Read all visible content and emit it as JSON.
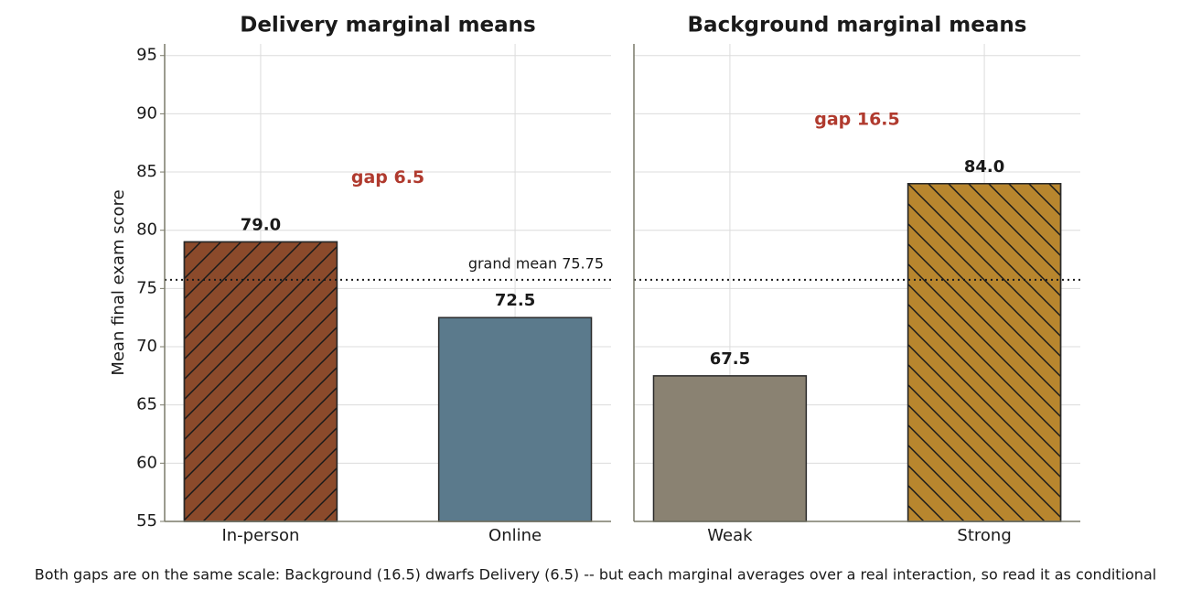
{
  "caption": "Both gaps are on the same scale: Background (16.5) dwarfs Delivery (6.5) -- but each marginal averages over a real interaction, so read it as conditional",
  "chart_data": [
    {
      "type": "bar",
      "title": "Delivery marginal means",
      "ylabel": "Mean final exam score",
      "categories": [
        "In-person",
        "Online"
      ],
      "values": [
        79,
        72.5
      ],
      "value_labels": [
        "79.0",
        "72.5"
      ],
      "colors": [
        "#8b4a2b",
        "#5b7a8c"
      ],
      "hatches": [
        "/",
        "none"
      ],
      "ylim": [
        55,
        96
      ],
      "yticks": [
        55,
        60,
        65,
        70,
        75,
        80,
        85,
        90,
        95
      ],
      "grid": true,
      "reference_line": 75.75,
      "reference_label": "grand mean 75.75",
      "annotation": "gap 6.5"
    },
    {
      "type": "bar",
      "title": "Background marginal means",
      "categories": [
        "Weak",
        "Strong"
      ],
      "values": [
        67.5,
        84
      ],
      "value_labels": [
        "67.5",
        "84.0"
      ],
      "colors": [
        "#8a8272",
        "#b8862e"
      ],
      "hatches": [
        "none",
        "\\"
      ],
      "ylim": [
        55,
        96
      ],
      "yticks": [
        55,
        60,
        65,
        70,
        75,
        80,
        85,
        90,
        95
      ],
      "grid": true,
      "reference_line": 75.75,
      "annotation": "gap 16.5"
    }
  ]
}
